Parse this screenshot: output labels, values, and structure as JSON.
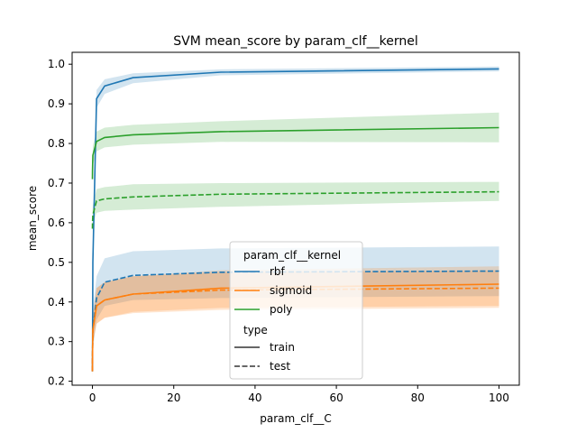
{
  "chart_data": {
    "type": "line",
    "title": "SVM mean_score by param_clf__kernel",
    "xlabel": "param_clf__C",
    "ylabel": "mean_score",
    "xlim": [
      -5,
      105
    ],
    "ylim": [
      0.19,
      1.03
    ],
    "xticks": [
      0,
      20,
      40,
      60,
      80,
      100
    ],
    "xtick_labels": [
      "0",
      "20",
      "40",
      "60",
      "80",
      "100"
    ],
    "yticks": [
      0.2,
      0.3,
      0.4,
      0.5,
      0.6,
      0.7,
      0.8,
      0.9,
      1.0
    ],
    "ytick_labels": [
      "0.2",
      "0.3",
      "0.4",
      "0.5",
      "0.6",
      "0.7",
      "0.8",
      "0.9",
      "1.0"
    ],
    "grid": false,
    "legend": {
      "placement": "lower-center",
      "hue_title": "param_clf__kernel",
      "style_title": "type",
      "style_entries": [
        {
          "label": "train",
          "dash": "solid"
        },
        {
          "label": "test",
          "dash": "dashed"
        }
      ]
    },
    "x": [
      0.001,
      0.01,
      0.1,
      1,
      3,
      10,
      31.6,
      100
    ],
    "series": [
      {
        "name": "rbf",
        "type": "train",
        "color": "#1f77b4",
        "values": [
          0.225,
          0.25,
          0.5,
          0.913,
          0.945,
          0.966,
          0.98,
          0.988
        ],
        "lower": [
          0.215,
          0.24,
          0.46,
          0.89,
          0.925,
          0.952,
          0.972,
          0.982
        ],
        "upper": [
          0.235,
          0.26,
          0.54,
          0.935,
          0.962,
          0.977,
          0.987,
          0.994
        ]
      },
      {
        "name": "rbf",
        "type": "test",
        "color": "#1f77b4",
        "values": [
          0.225,
          0.26,
          0.33,
          0.41,
          0.45,
          0.467,
          0.475,
          0.478
        ],
        "lower": [
          0.21,
          0.23,
          0.28,
          0.355,
          0.39,
          0.405,
          0.41,
          0.415
        ],
        "upper": [
          0.24,
          0.29,
          0.38,
          0.465,
          0.51,
          0.528,
          0.535,
          0.54
        ]
      },
      {
        "name": "sigmoid",
        "type": "train",
        "color": "#ff7f0e",
        "values": [
          0.225,
          0.26,
          0.33,
          0.39,
          0.405,
          0.42,
          0.435,
          0.445
        ],
        "lower": [
          0.21,
          0.235,
          0.295,
          0.345,
          0.36,
          0.375,
          0.385,
          0.39
        ],
        "upper": [
          0.24,
          0.285,
          0.365,
          0.435,
          0.45,
          0.465,
          0.48,
          0.49
        ]
      },
      {
        "name": "sigmoid",
        "type": "test",
        "color": "#ff7f0e",
        "values": [
          0.225,
          0.26,
          0.33,
          0.39,
          0.405,
          0.42,
          0.43,
          0.435
        ],
        "lower": [
          0.21,
          0.235,
          0.295,
          0.345,
          0.36,
          0.372,
          0.38,
          0.385
        ],
        "upper": [
          0.24,
          0.285,
          0.365,
          0.435,
          0.45,
          0.465,
          0.475,
          0.48
        ]
      },
      {
        "name": "poly",
        "type": "train",
        "color": "#2ca02c",
        "values": [
          0.71,
          0.73,
          0.77,
          0.805,
          0.815,
          0.822,
          0.83,
          0.84
        ],
        "lower": [
          0.69,
          0.71,
          0.745,
          0.78,
          0.79,
          0.797,
          0.804,
          0.803
        ],
        "upper": [
          0.73,
          0.75,
          0.795,
          0.83,
          0.84,
          0.847,
          0.856,
          0.878
        ]
      },
      {
        "name": "poly",
        "type": "test",
        "color": "#2ca02c",
        "values": [
          0.585,
          0.6,
          0.62,
          0.655,
          0.66,
          0.665,
          0.672,
          0.678
        ],
        "lower": [
          0.56,
          0.575,
          0.595,
          0.625,
          0.63,
          0.633,
          0.64,
          0.655
        ],
        "upper": [
          0.61,
          0.625,
          0.645,
          0.685,
          0.69,
          0.697,
          0.7,
          0.703
        ]
      }
    ],
    "legend_entries": [
      {
        "label": "rbf",
        "color": "#1f77b4"
      },
      {
        "label": "sigmoid",
        "color": "#ff7f0e"
      },
      {
        "label": "poly",
        "color": "#2ca02c"
      }
    ]
  }
}
